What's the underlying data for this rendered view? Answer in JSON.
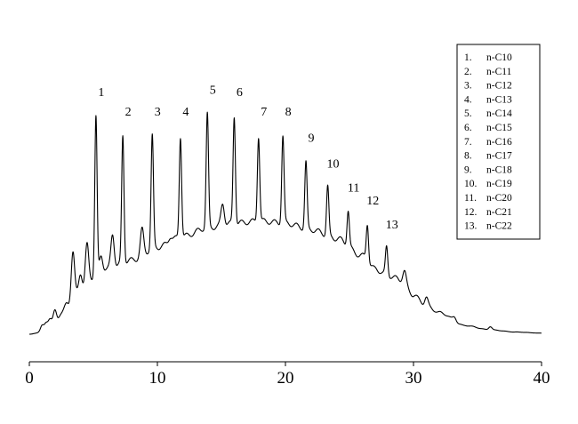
{
  "chart_data": {
    "type": "line",
    "title": "",
    "xlabel": "",
    "ylabel": "",
    "xlim": [
      0,
      40
    ],
    "x_ticks": [
      "0",
      "10",
      "20",
      "30",
      "40"
    ],
    "grid": false,
    "legend_position": "top-right",
    "line_color": "#000000",
    "baseline": 0.0,
    "hump": [
      [
        0,
        0.0
      ],
      [
        1,
        0.01
      ],
      [
        2,
        0.05
      ],
      [
        3,
        0.13
      ],
      [
        4,
        0.2
      ],
      [
        5,
        0.26
      ],
      [
        6,
        0.3
      ],
      [
        8,
        0.34
      ],
      [
        10,
        0.4
      ],
      [
        12,
        0.45
      ],
      [
        14,
        0.49
      ],
      [
        16,
        0.51
      ],
      [
        18,
        0.52
      ],
      [
        20,
        0.51
      ],
      [
        22,
        0.48
      ],
      [
        24,
        0.44
      ],
      [
        26,
        0.36
      ],
      [
        27,
        0.3
      ],
      [
        28,
        0.27
      ],
      [
        29,
        0.25
      ],
      [
        30,
        0.18
      ],
      [
        31,
        0.13
      ],
      [
        32,
        0.1
      ],
      [
        34,
        0.04
      ],
      [
        36,
        0.02
      ],
      [
        38,
        0.01
      ],
      [
        40,
        0.005
      ]
    ],
    "peaks": [
      {
        "label": "1",
        "x": 5.2,
        "y": 1.0
      },
      {
        "label": "2",
        "x": 7.3,
        "y": 0.91
      },
      {
        "label": "3",
        "x": 9.6,
        "y": 0.91
      },
      {
        "label": "4",
        "x": 11.8,
        "y": 0.91
      },
      {
        "label": "5",
        "x": 13.9,
        "y": 1.01
      },
      {
        "label": "6",
        "x": 16.0,
        "y": 1.0
      },
      {
        "label": "7",
        "x": 17.9,
        "y": 0.91
      },
      {
        "label": "8",
        "x": 19.8,
        "y": 0.91
      },
      {
        "label": "9",
        "x": 21.6,
        "y": 0.79
      },
      {
        "label": "10",
        "x": 23.3,
        "y": 0.68
      },
      {
        "label": "11",
        "x": 24.9,
        "y": 0.57
      },
      {
        "label": "12",
        "x": 26.4,
        "y": 0.51
      },
      {
        "label": "13",
        "x": 27.9,
        "y": 0.4
      }
    ],
    "minor_peaks": [
      {
        "x": 1.0,
        "y": 0.04
      },
      {
        "x": 1.3,
        "y": 0.05
      },
      {
        "x": 1.6,
        "y": 0.07
      },
      {
        "x": 2.0,
        "y": 0.11
      },
      {
        "x": 2.4,
        "y": 0.09
      },
      {
        "x": 2.9,
        "y": 0.14
      },
      {
        "x": 3.4,
        "y": 0.38
      },
      {
        "x": 4.0,
        "y": 0.28
      },
      {
        "x": 4.5,
        "y": 0.41
      },
      {
        "x": 5.6,
        "y": 0.36
      },
      {
        "x": 6.5,
        "y": 0.46
      },
      {
        "x": 8.8,
        "y": 0.48
      },
      {
        "x": 10.5,
        "y": 0.38
      },
      {
        "x": 11.0,
        "y": 0.45
      },
      {
        "x": 12.6,
        "y": 0.36
      },
      {
        "x": 13.2,
        "y": 0.45
      },
      {
        "x": 15.1,
        "y": 0.6
      },
      {
        "x": 16.8,
        "y": 0.42
      },
      {
        "x": 18.9,
        "y": 0.48
      },
      {
        "x": 20.8,
        "y": 0.39
      },
      {
        "x": 22.6,
        "y": 0.35
      },
      {
        "x": 24.4,
        "y": 0.34
      },
      {
        "x": 29.3,
        "y": 0.29
      },
      {
        "x": 31.0,
        "y": 0.17
      },
      {
        "x": 33.2,
        "y": 0.08
      },
      {
        "x": 36.0,
        "y": 0.035
      }
    ],
    "legend": [
      {
        "num": "1.",
        "name": "n-C10"
      },
      {
        "num": "2.",
        "name": "n-C11"
      },
      {
        "num": "3.",
        "name": "n-C12"
      },
      {
        "num": "4.",
        "name": "n-C13"
      },
      {
        "num": "5.",
        "name": "n-C14"
      },
      {
        "num": "6.",
        "name": "n-C15"
      },
      {
        "num": "7.",
        "name": "n-C16"
      },
      {
        "num": "8.",
        "name": "n-C17"
      },
      {
        "num": "9.",
        "name": "n-C18"
      },
      {
        "num": "10.",
        "name": "n-C19"
      },
      {
        "num": "11.",
        "name": "n-C20"
      },
      {
        "num": "12.",
        "name": "n-C21"
      },
      {
        "num": "13.",
        "name": "n-C22"
      }
    ]
  }
}
